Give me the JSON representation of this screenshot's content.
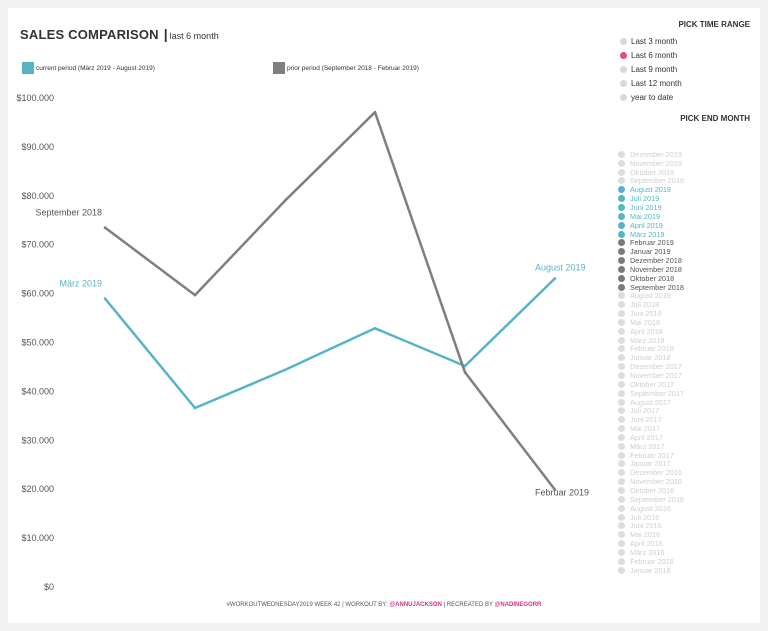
{
  "header": {
    "title": "SALES COMPARISON",
    "separator": "|",
    "subtitle": "last 6 month"
  },
  "legend": [
    {
      "label": "current period (März 2019 - August 2019)",
      "color": "#56b4c8"
    },
    {
      "label": "prior period (September 2018 - Februar 2019)",
      "color": "#7f7f7f"
    }
  ],
  "chart_data": {
    "type": "line",
    "x": [
      1,
      2,
      3,
      4,
      5,
      6
    ],
    "xlim": [
      0.5,
      6.5
    ],
    "ylim": [
      0,
      100000
    ],
    "yticks": [
      0,
      10000,
      20000,
      30000,
      40000,
      50000,
      60000,
      70000,
      80000,
      90000,
      100000
    ],
    "ytick_labels": [
      "$0",
      "$10.000",
      "$20.000",
      "$30.000",
      "$40.000",
      "$50.000",
      "$60.000",
      "$70.000",
      "$80.000",
      "$90.000",
      "$100.000"
    ],
    "grid": false,
    "series": [
      {
        "name": "current period (März 2019 - August 2019)",
        "color": "#56b4c8",
        "values": [
          59000,
          36600,
          44400,
          52900,
          45200,
          63100
        ]
      },
      {
        "name": "prior period (September 2018 - Februar 2019)",
        "color": "#7f7f7f",
        "values": [
          73500,
          59700,
          79000,
          97100,
          43900,
          19900
        ]
      }
    ],
    "annotations": [
      {
        "text": "März 2019",
        "series": 0,
        "index": 0,
        "color": "#56b4c8"
      },
      {
        "text": "August 2019",
        "series": 0,
        "index": 5,
        "color": "#56b4c8"
      },
      {
        "text": "September 2018",
        "series": 1,
        "index": 0,
        "color": "#555555"
      },
      {
        "text": "Februar 2019",
        "series": 1,
        "index": 5,
        "color": "#555555"
      }
    ]
  },
  "time_range": {
    "heading": "PICK TIME RANGE",
    "options": [
      {
        "label": "Last 3 month",
        "color": "#d9d9d9"
      },
      {
        "label": "Last 6 month",
        "color": "#e8488f"
      },
      {
        "label": "Last 9 month",
        "color": "#d9d9d9"
      },
      {
        "label": "Last 12 month",
        "color": "#d9d9d9"
      },
      {
        "label": "year to date",
        "color": "#d9d9d9"
      }
    ]
  },
  "end_month": {
    "heading": "PICK END MONTH",
    "months": [
      {
        "label": "Dezember 2019",
        "state": "inactive"
      },
      {
        "label": "November 2019",
        "state": "inactive"
      },
      {
        "label": "Oktober 2019",
        "state": "inactive"
      },
      {
        "label": "September 2019",
        "state": "inactive"
      },
      {
        "label": "August 2019",
        "state": "current"
      },
      {
        "label": "Juli 2019",
        "state": "current"
      },
      {
        "label": "Juni 2019",
        "state": "current"
      },
      {
        "label": "Mai 2019",
        "state": "current"
      },
      {
        "label": "April 2019",
        "state": "current"
      },
      {
        "label": "März 2019",
        "state": "current"
      },
      {
        "label": "Februar 2019",
        "state": "prior"
      },
      {
        "label": "Januar 2019",
        "state": "prior"
      },
      {
        "label": "Dezember 2018",
        "state": "prior"
      },
      {
        "label": "November 2018",
        "state": "prior"
      },
      {
        "label": "Oktober 2018",
        "state": "prior"
      },
      {
        "label": "September 2018",
        "state": "prior"
      },
      {
        "label": "August 2018",
        "state": "inactive"
      },
      {
        "label": "Juli 2018",
        "state": "inactive"
      },
      {
        "label": "Juni 2018",
        "state": "inactive"
      },
      {
        "label": "Mai 2018",
        "state": "inactive"
      },
      {
        "label": "April 2018",
        "state": "inactive"
      },
      {
        "label": "März 2018",
        "state": "inactive"
      },
      {
        "label": "Februar 2018",
        "state": "inactive"
      },
      {
        "label": "Januar 2018",
        "state": "inactive"
      },
      {
        "label": "Dezember 2017",
        "state": "inactive"
      },
      {
        "label": "November 2017",
        "state": "inactive"
      },
      {
        "label": "Oktober 2017",
        "state": "inactive"
      },
      {
        "label": "September 2017",
        "state": "inactive"
      },
      {
        "label": "August 2017",
        "state": "inactive"
      },
      {
        "label": "Juli 2017",
        "state": "inactive"
      },
      {
        "label": "Juni 2017",
        "state": "inactive"
      },
      {
        "label": "Mai 2017",
        "state": "inactive"
      },
      {
        "label": "April 2017",
        "state": "inactive"
      },
      {
        "label": "März 2017",
        "state": "inactive"
      },
      {
        "label": "Februar 2017",
        "state": "inactive"
      },
      {
        "label": "Januar 2017",
        "state": "inactive"
      },
      {
        "label": "Dezember 2016",
        "state": "inactive"
      },
      {
        "label": "November 2016",
        "state": "inactive"
      },
      {
        "label": "Oktober 2016",
        "state": "inactive"
      },
      {
        "label": "September 2016",
        "state": "inactive"
      },
      {
        "label": "August 2016",
        "state": "inactive"
      },
      {
        "label": "Juli 2016",
        "state": "inactive"
      },
      {
        "label": "Juni 2016",
        "state": "inactive"
      },
      {
        "label": "Mai 2016",
        "state": "inactive"
      },
      {
        "label": "April 2016",
        "state": "inactive"
      },
      {
        "label": "März 2016",
        "state": "inactive"
      },
      {
        "label": "Februar 2016",
        "state": "inactive"
      },
      {
        "label": "Januar 2016",
        "state": "inactive"
      }
    ],
    "state_colors": {
      "inactive": {
        "dot": "#dcdcdc",
        "text": "#cfcfcf"
      },
      "current": {
        "dot": "#56b4c8",
        "text": "#56b4c8"
      },
      "prior": {
        "dot": "#7a7a7a",
        "text": "#555555"
      }
    }
  },
  "footer": {
    "prefix": "#WORKOUTWEDNESDAY2019 WEEK 42 | WORKOUT BY: ",
    "author": "@ANNUJACKSON",
    "middle": " | RECREATED BY ",
    "recreator": "@NADINEGORR"
  }
}
